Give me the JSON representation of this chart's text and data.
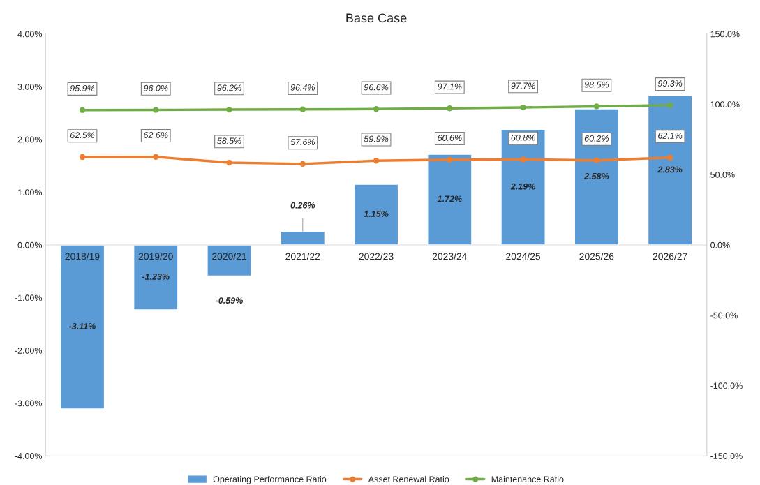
{
  "chart_data": {
    "type": "bar",
    "title": "Base Case",
    "categories": [
      "2018/19",
      "2019/20",
      "2020/21",
      "2021/22",
      "2022/23",
      "2023/24",
      "2024/25",
      "2025/26",
      "2026/27"
    ],
    "series": [
      {
        "name": "Operating Performance Ratio",
        "color": "#5b9bd5",
        "values": [
          -3.11,
          -1.23,
          -0.59,
          0.26,
          1.15,
          1.72,
          2.19,
          2.58,
          2.83
        ],
        "value_labels": [
          "-3.11%",
          "-1.23%",
          "-0.59%",
          "0.26%",
          "1.15%",
          "1.72%",
          "2.19%",
          "2.58%",
          "2.83%"
        ]
      },
      {
        "name": "Asset Renewal Ratio",
        "type": "line",
        "axis": "y2",
        "color": "#ed7d31",
        "values": [
          62.5,
          62.6,
          58.5,
          57.6,
          59.9,
          60.6,
          60.8,
          60.2,
          62.1
        ],
        "value_labels": [
          "62.5%",
          "62.6%",
          "58.5%",
          "57.6%",
          "59.9%",
          "60.6%",
          "60.8%",
          "60.2%",
          "62.1%"
        ]
      },
      {
        "name": "Maintenance Ratio",
        "type": "line",
        "axis": "y2",
        "color": "#70ad47",
        "values": [
          95.9,
          96.0,
          96.2,
          96.4,
          96.6,
          97.1,
          97.7,
          98.5,
          99.3
        ],
        "value_labels": [
          "95.9%",
          "96.0%",
          "96.2%",
          "96.4%",
          "96.6%",
          "97.1%",
          "97.7%",
          "98.5%",
          "99.3%"
        ]
      }
    ],
    "ylim": [
      -4,
      4
    ],
    "yticks": [
      {
        "value": -4,
        "label": "-4.00%"
      },
      {
        "value": -3,
        "label": "-3.00%"
      },
      {
        "value": -2,
        "label": "-2.00%"
      },
      {
        "value": -1,
        "label": "-1.00%"
      },
      {
        "value": 0,
        "label": "0.00%"
      },
      {
        "value": 1,
        "label": "1.00%"
      },
      {
        "value": 2,
        "label": "2.00%"
      },
      {
        "value": 3,
        "label": "3.00%"
      },
      {
        "value": 4,
        "label": "4.00%"
      }
    ],
    "y2lim": [
      -150,
      150
    ],
    "y2ticks": [
      {
        "value": -150,
        "label": "-150.0%"
      },
      {
        "value": -100,
        "label": "-100.0%"
      },
      {
        "value": -50,
        "label": "-50.0%"
      },
      {
        "value": 0,
        "label": "0.0%"
      },
      {
        "value": 50,
        "label": "50.0%"
      },
      {
        "value": 100,
        "label": "100.0%"
      },
      {
        "value": 150,
        "label": "150.0%"
      }
    ],
    "marker": "circle",
    "line_style": "solid",
    "legend": "bottom",
    "grid": false
  }
}
